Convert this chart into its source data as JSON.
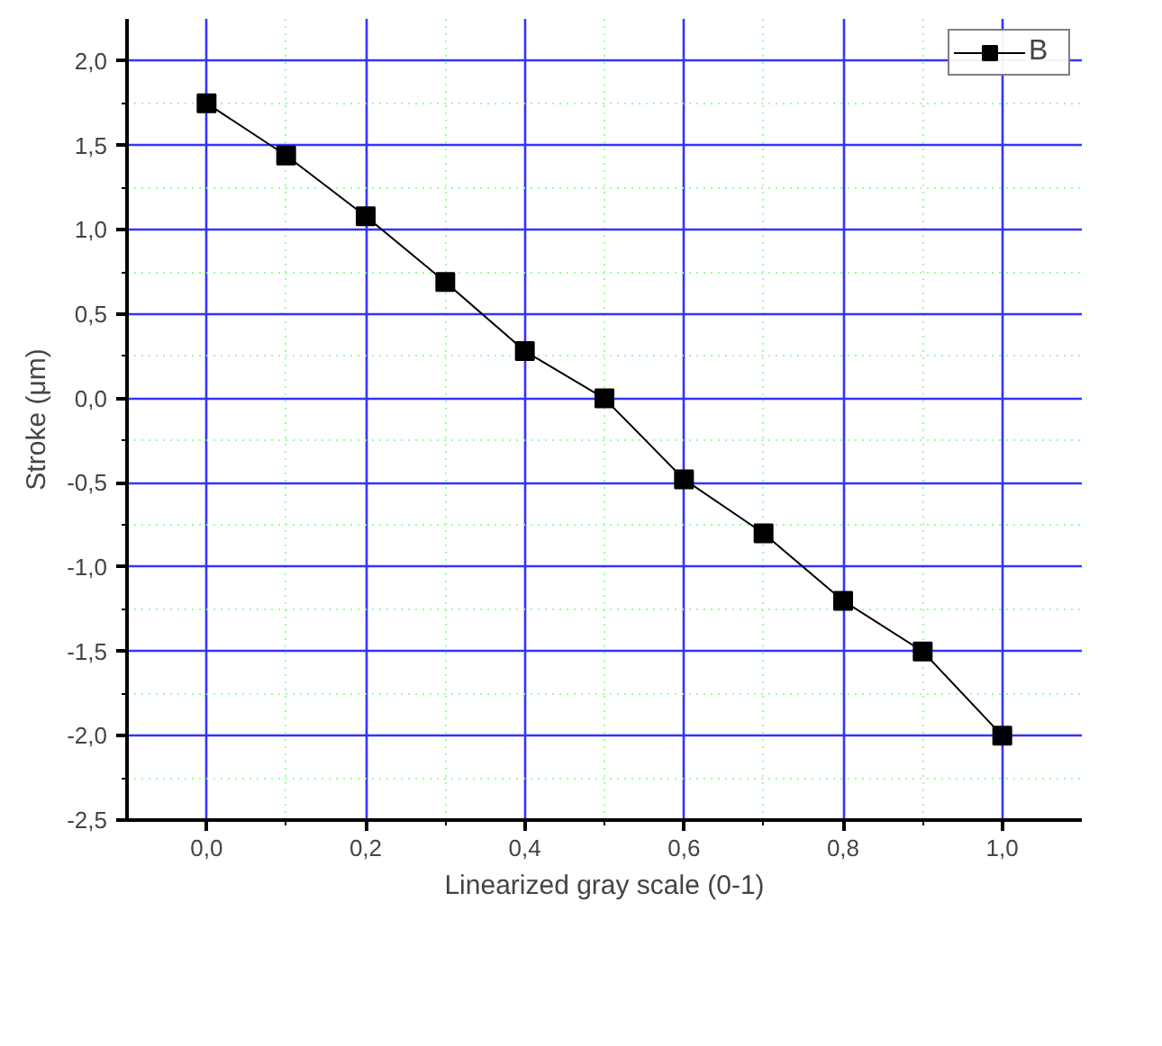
{
  "chart_data": {
    "type": "line",
    "xlabel": "Linearized gray scale (0-1)",
    "ylabel": "Stroke (μm)",
    "x": [
      0.0,
      0.1,
      0.2,
      0.3,
      0.4,
      0.5,
      0.6,
      0.7,
      0.8,
      0.9,
      1.0
    ],
    "series": [
      {
        "name": "B",
        "color": "#000000",
        "values": [
          1.75,
          1.44,
          1.08,
          0.69,
          0.28,
          0.0,
          -0.48,
          -0.8,
          -1.2,
          -1.5,
          -2.0
        ]
      }
    ],
    "xlim": [
      -0.1,
      1.1
    ],
    "ylim": [
      -2.5,
      2.25
    ],
    "xticks": [
      {
        "value": 0.1,
        "label": null
      },
      {
        "value": 0.3,
        "label": null
      },
      {
        "value": 0.5,
        "label": null
      },
      {
        "value": 0.7,
        "label": null
      },
      {
        "value": 0.9,
        "label": null
      },
      {
        "value": 0.0,
        "label": "0,0"
      },
      {
        "value": 0.2,
        "label": "0,2"
      },
      {
        "value": 0.4,
        "label": "0,4"
      },
      {
        "value": 0.6,
        "label": "0,6"
      },
      {
        "value": 0.8,
        "label": "0,8"
      },
      {
        "value": 1.0,
        "label": "1,0"
      }
    ],
    "yticks": [
      {
        "value": -2.25,
        "label": null
      },
      {
        "value": -1.75,
        "label": null
      },
      {
        "value": -1.25,
        "label": null
      },
      {
        "value": -0.75,
        "label": null
      },
      {
        "value": -0.25,
        "label": null
      },
      {
        "value": 0.25,
        "label": null
      },
      {
        "value": 0.75,
        "label": null
      },
      {
        "value": 1.25,
        "label": null
      },
      {
        "value": 1.75,
        "label": null
      },
      {
        "value": -2.5,
        "label": "-2,5"
      },
      {
        "value": -2.0,
        "label": "-2,0"
      },
      {
        "value": -1.5,
        "label": "-1,5"
      },
      {
        "value": -1.0,
        "label": "-1,0"
      },
      {
        "value": -0.5,
        "label": "-0,5"
      },
      {
        "value": 0.0,
        "label": "0,0"
      },
      {
        "value": 0.5,
        "label": "0,5"
      },
      {
        "value": 1.0,
        "label": "1,0"
      },
      {
        "value": 1.5,
        "label": "1,5"
      },
      {
        "value": 2.0,
        "label": "2,0"
      }
    ],
    "grid": true,
    "legend": "top right",
    "marker": "square",
    "line_style": "solid"
  }
}
